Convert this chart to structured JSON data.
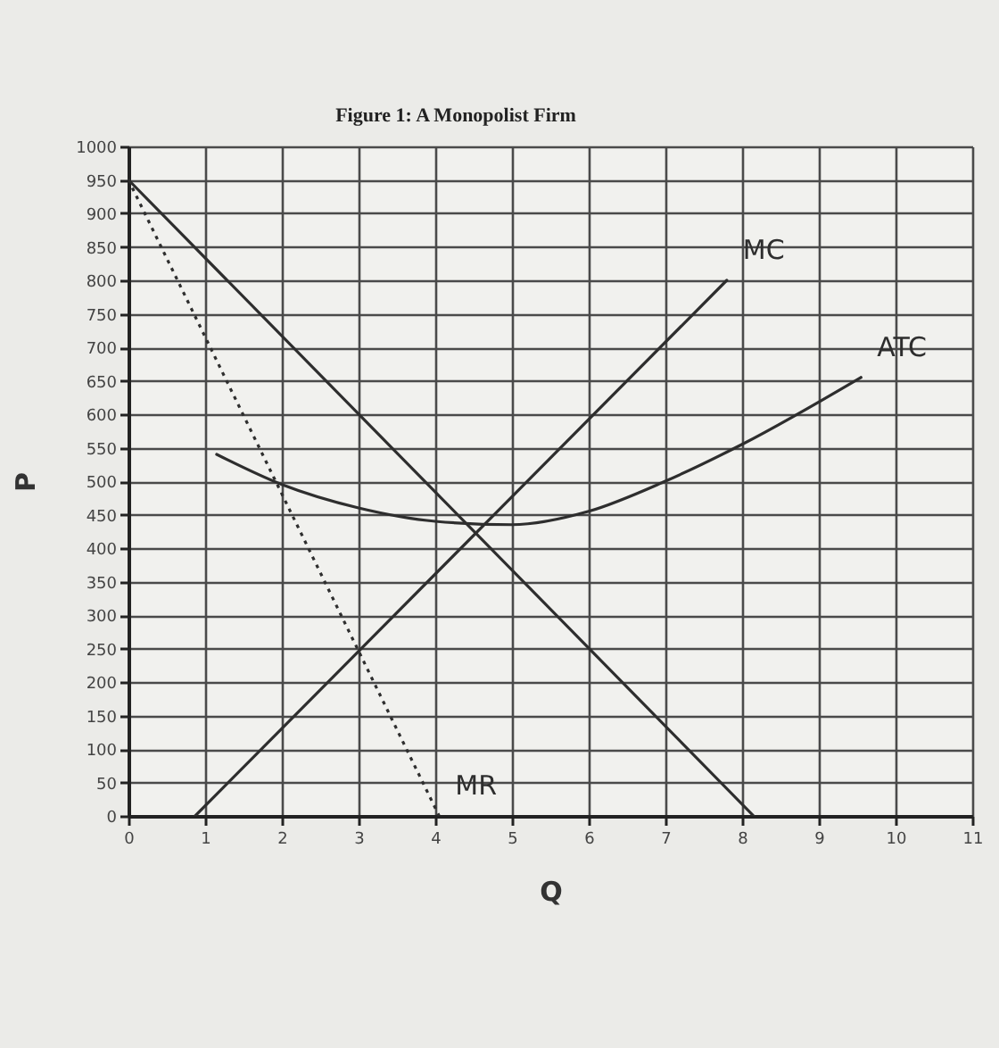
{
  "chart_data": {
    "type": "line",
    "title": "Figure 1: A Monopolist Firm",
    "xlabel": "Q",
    "ylabel": "P",
    "xlim": [
      0,
      11
    ],
    "xticks": [
      0,
      1,
      2,
      3,
      4,
      5,
      6,
      7,
      8,
      9,
      10,
      11
    ],
    "ylim": [
      0,
      1000
    ],
    "yticks": [
      0,
      50,
      100,
      150,
      200,
      250,
      300,
      350,
      400,
      450,
      500,
      550,
      600,
      650,
      700,
      750,
      800,
      850,
      900,
      950,
      1000
    ],
    "grid": true,
    "line_style": "solid",
    "series": [
      {
        "x": [
          0,
          8.15
        ],
        "values": [
          950,
          0
        ],
        "color": "#2e2e2e"
      },
      {
        "name": "MR",
        "x": [
          0,
          4.05
        ],
        "values": [
          950,
          0
        ],
        "color": "#2e2e2e",
        "line_style": "dotted"
      },
      {
        "name": "MC",
        "x": [
          0.87,
          7.8
        ],
        "values": [
          0,
          800
        ],
        "color": "#2e2e2e"
      },
      {
        "name": "ATC",
        "x": [
          1.15,
          2,
          3,
          4,
          5,
          6,
          7,
          8,
          9.55
        ],
        "values": [
          540,
          495,
          460,
          440,
          435,
          455,
          500,
          555,
          655
        ],
        "color": "#2e2e2e"
      }
    ]
  }
}
